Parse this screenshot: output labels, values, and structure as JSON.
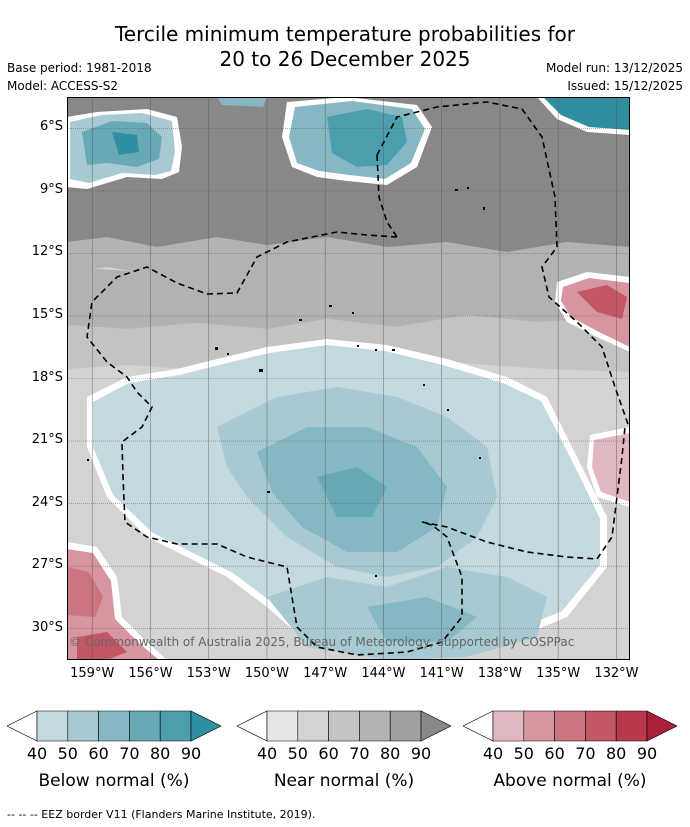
{
  "title": {
    "line1": "Tercile minimum temperature probabilities for",
    "line2": "20 to 26 December 2025"
  },
  "meta_left": {
    "base_period": "Base period: 1981-2018",
    "model": "Model: ACCESS-S2"
  },
  "meta_right": {
    "model_run": "Model run: 13/12/2025",
    "issued": "Issued: 15/12/2025"
  },
  "map": {
    "copyright": "© Commonwealth of Australia 2025, Bureau of Meteorology, supported by COSPPac",
    "lat_labels": [
      "6°S",
      "9°S",
      "12°S",
      "15°S",
      "18°S",
      "21°S",
      "24°S",
      "27°S",
      "30°S"
    ],
    "lon_labels": [
      "159°W",
      "156°W",
      "153°W",
      "150°W",
      "147°W",
      "144°W",
      "141°W",
      "138°W",
      "135°W",
      "132°W"
    ],
    "lat_range": [
      -31.5,
      -4.5
    ],
    "lon_range": [
      -160.3,
      -131.3
    ]
  },
  "legends": [
    {
      "name": "below",
      "title": "Below normal (%)",
      "ticks": [
        "40",
        "50",
        "60",
        "70",
        "80",
        "90"
      ],
      "colors": [
        "#ffffff",
        "#c3d8df",
        "#a7c9d1",
        "#86b8c3",
        "#68a9b6",
        "#4a9eae",
        "#2f8fa1"
      ]
    },
    {
      "name": "near",
      "title": "Near normal (%)",
      "ticks": [
        "40",
        "50",
        "60",
        "70",
        "80",
        "90"
      ],
      "colors": [
        "#ffffff",
        "#e6e6e6",
        "#d3d3d3",
        "#c3c3c3",
        "#b2b2b2",
        "#a0a0a0",
        "#888888"
      ]
    },
    {
      "name": "above",
      "title": "Above normal (%)",
      "ticks": [
        "40",
        "50",
        "60",
        "70",
        "80",
        "90"
      ],
      "colors": [
        "#ffffff",
        "#e2b8c0",
        "#d6959f",
        "#cc7480",
        "#c45766",
        "#b8394c",
        "#a92038"
      ]
    }
  ],
  "footer": "--  --  -- EEZ border V11 (Flanders Marine Institute, 2019)."
}
